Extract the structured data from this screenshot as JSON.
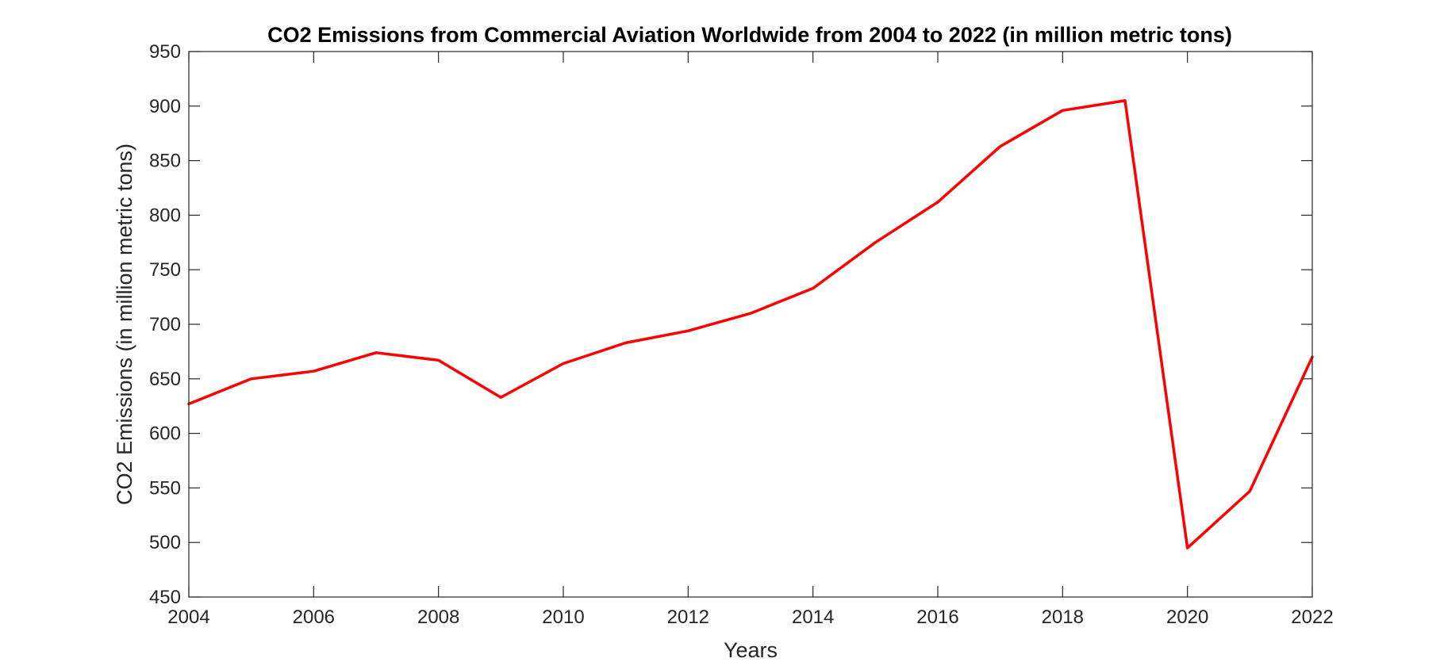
{
  "chart_data": {
    "type": "line",
    "title": "CO2 Emissions from Commercial Aviation Worldwide from 2004 to 2022 (in million metric tons)",
    "xlabel": "Years",
    "ylabel": "CO2 Emissions (in million metric tons)",
    "xlim": [
      2004,
      2022
    ],
    "ylim": [
      450,
      950
    ],
    "xticks": [
      2004,
      2006,
      2008,
      2010,
      2012,
      2014,
      2016,
      2018,
      2020,
      2022
    ],
    "yticks": [
      450,
      500,
      550,
      600,
      650,
      700,
      750,
      800,
      850,
      900,
      950
    ],
    "grid": false,
    "box": true,
    "line_color": "#ff0000",
    "x": [
      2004,
      2005,
      2006,
      2007,
      2008,
      2009,
      2010,
      2011,
      2012,
      2013,
      2014,
      2015,
      2016,
      2017,
      2018,
      2019,
      2020,
      2021,
      2022
    ],
    "y": [
      627,
      650,
      657,
      674,
      667,
      633,
      664,
      683,
      694,
      710,
      733,
      775,
      812,
      863,
      896,
      905,
      495,
      547,
      670
    ]
  }
}
